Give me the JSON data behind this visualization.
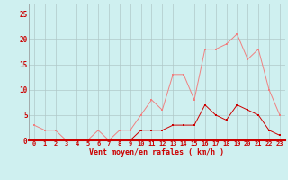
{
  "hours": [
    0,
    1,
    2,
    3,
    4,
    5,
    6,
    7,
    8,
    9,
    10,
    11,
    12,
    13,
    14,
    15,
    16,
    17,
    18,
    19,
    20,
    21,
    22,
    23
  ],
  "moyen": [
    0,
    0,
    0,
    0,
    0,
    0,
    0,
    0,
    0,
    0,
    2,
    2,
    2,
    3,
    3,
    3,
    7,
    5,
    4,
    7,
    6,
    5,
    2,
    1
  ],
  "rafales": [
    3,
    2,
    2,
    0,
    0,
    0,
    2,
    0,
    2,
    2,
    5,
    8,
    6,
    13,
    13,
    8,
    18,
    18,
    19,
    21,
    16,
    18,
    10,
    5
  ],
  "color_moyen": "#cc0000",
  "color_rafales": "#f08080",
  "bg_color": "#cff0f0",
  "grid_color": "#b0c8c8",
  "axis_color": "#cc0000",
  "xlabel": "Vent moyen/en rafales ( km/h )",
  "yticks": [
    0,
    5,
    10,
    15,
    20,
    25
  ],
  "ylim": [
    0,
    27
  ],
  "xlim": [
    -0.5,
    23.5
  ],
  "marker_size": 2.0
}
